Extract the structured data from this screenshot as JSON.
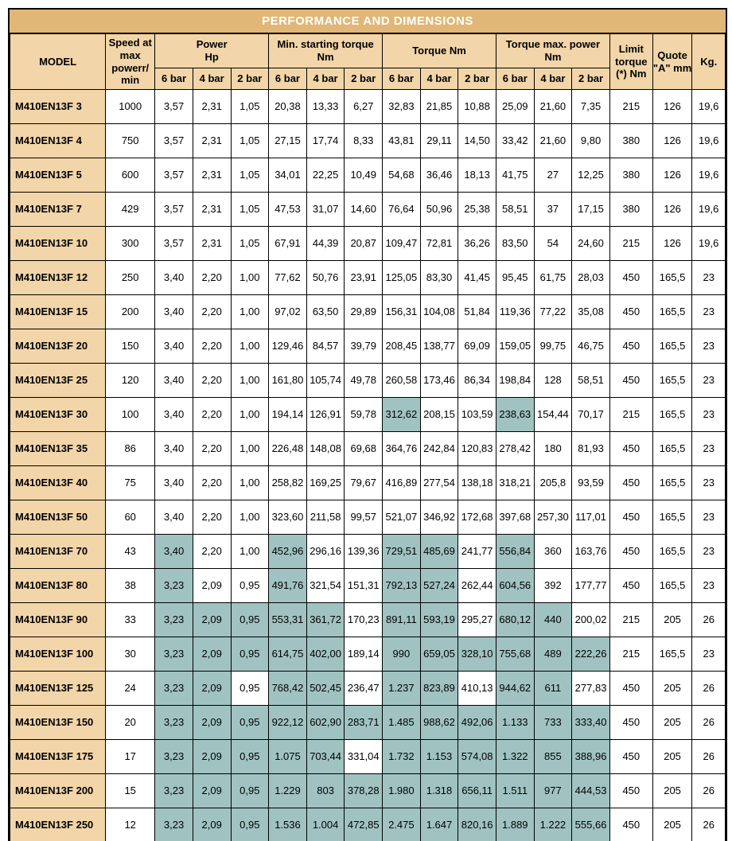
{
  "title": "PERFORMANCE AND DIMENSIONS",
  "colors": {
    "header_bg": "#f2d5a8",
    "title_bg": "#e0b776",
    "highlight_bg": "#a0c3c1",
    "border": "#000000",
    "title_text": "#ffffff"
  },
  "columns_top": [
    {
      "label": "MODEL",
      "rowspan": 2,
      "class": "col-model"
    },
    {
      "label": "Speed at max powerr/ min",
      "rowspan": 2,
      "class": "col-speed"
    },
    {
      "label": "Power\nHp",
      "colspan": 3
    },
    {
      "label": "Min. starting torque Nm",
      "colspan": 3
    },
    {
      "label": "Torque Nm",
      "colspan": 3
    },
    {
      "label": "Torque max. power Nm",
      "colspan": 3
    },
    {
      "label": "Limit torque (*) Nm",
      "rowspan": 2,
      "class": "col-limit"
    },
    {
      "label": "Quote \"A\" mm",
      "rowspan": 2,
      "class": "col-quote"
    },
    {
      "label": "Kg.",
      "rowspan": 2,
      "class": "col-kg"
    }
  ],
  "columns_sub": [
    "6 bar",
    "4 bar",
    "2 bar",
    "6 bar",
    "4 bar",
    "2 bar",
    "6 bar",
    "4 bar",
    "2 bar",
    "6 bar",
    "4 bar",
    "2 bar"
  ],
  "rows": [
    {
      "model": "M410EN13F 3",
      "speed": "1000",
      "p": [
        "3,57",
        "2,31",
        "1,05"
      ],
      "mst": [
        "20,38",
        "13,33",
        "6,27"
      ],
      "tq": [
        "32,83",
        "21,85",
        "10,88"
      ],
      "tmp": [
        "25,09",
        "21,60",
        "7,35"
      ],
      "limit": "215",
      "quote": "126",
      "kg": "19,6",
      "hl": {}
    },
    {
      "model": "M410EN13F 4",
      "speed": "750",
      "p": [
        "3,57",
        "2,31",
        "1,05"
      ],
      "mst": [
        "27,15",
        "17,74",
        "8,33"
      ],
      "tq": [
        "43,81",
        "29,11",
        "14,50"
      ],
      "tmp": [
        "33,42",
        "21,60",
        "9,80"
      ],
      "limit": "380",
      "quote": "126",
      "kg": "19,6",
      "hl": {}
    },
    {
      "model": "M410EN13F 5",
      "speed": "600",
      "p": [
        "3,57",
        "2,31",
        "1,05"
      ],
      "mst": [
        "34,01",
        "22,25",
        "10,49"
      ],
      "tq": [
        "54,68",
        "36,46",
        "18,13"
      ],
      "tmp": [
        "41,75",
        "27",
        "12,25"
      ],
      "limit": "380",
      "quote": "126",
      "kg": "19,6",
      "hl": {}
    },
    {
      "model": "M410EN13F 7",
      "speed": "429",
      "p": [
        "3,57",
        "2,31",
        "1,05"
      ],
      "mst": [
        "47,53",
        "31,07",
        "14,60"
      ],
      "tq": [
        "76,64",
        "50,96",
        "25,38"
      ],
      "tmp": [
        "58,51",
        "37",
        "17,15"
      ],
      "limit": "380",
      "quote": "126",
      "kg": "19,6",
      "hl": {}
    },
    {
      "model": "M410EN13F 10",
      "speed": "300",
      "p": [
        "3,57",
        "2,31",
        "1,05"
      ],
      "mst": [
        "67,91",
        "44,39",
        "20,87"
      ],
      "tq": [
        "109,47",
        "72,81",
        "36,26"
      ],
      "tmp": [
        "83,50",
        "54",
        "24,60"
      ],
      "limit": "215",
      "quote": "126",
      "kg": "19,6",
      "hl": {}
    },
    {
      "model": "M410EN13F 12",
      "speed": "250",
      "p": [
        "3,40",
        "2,20",
        "1,00"
      ],
      "mst": [
        "77,62",
        "50,76",
        "23,91"
      ],
      "tq": [
        "125,05",
        "83,30",
        "41,45"
      ],
      "tmp": [
        "95,45",
        "61,75",
        "28,03"
      ],
      "limit": "450",
      "quote": "165,5",
      "kg": "23",
      "hl": {}
    },
    {
      "model": "M410EN13F 15",
      "speed": "200",
      "p": [
        "3,40",
        "2,20",
        "1,00"
      ],
      "mst": [
        "97,02",
        "63,50",
        "29,89"
      ],
      "tq": [
        "156,31",
        "104,08",
        "51,84"
      ],
      "tmp": [
        "119,36",
        "77,22",
        "35,08"
      ],
      "limit": "450",
      "quote": "165,5",
      "kg": "23",
      "hl": {}
    },
    {
      "model": "M410EN13F 20",
      "speed": "150",
      "p": [
        "3,40",
        "2,20",
        "1,00"
      ],
      "mst": [
        "129,46",
        "84,57",
        "39,79"
      ],
      "tq": [
        "208,45",
        "138,77",
        "69,09"
      ],
      "tmp": [
        "159,05",
        "99,75",
        "46,75"
      ],
      "limit": "450",
      "quote": "165,5",
      "kg": "23",
      "hl": {}
    },
    {
      "model": "M410EN13F 25",
      "speed": "120",
      "p": [
        "3,40",
        "2,20",
        "1,00"
      ],
      "mst": [
        "161,80",
        "105,74",
        "49,78"
      ],
      "tq": [
        "260,58",
        "173,46",
        "86,34"
      ],
      "tmp": [
        "198,84",
        "128",
        "58,51"
      ],
      "limit": "450",
      "quote": "165,5",
      "kg": "23",
      "hl": {}
    },
    {
      "model": "M410EN13F 30",
      "speed": "100",
      "p": [
        "3,40",
        "2,20",
        "1,00"
      ],
      "mst": [
        "194,14",
        "126,91",
        "59,78"
      ],
      "tq": [
        "312,62",
        "208,15",
        "103,59"
      ],
      "tmp": [
        "238,63",
        "154,44",
        "70,17"
      ],
      "limit": "215",
      "quote": "165,5",
      "kg": "23",
      "hl": {
        "tq0": 1,
        "tmp0": 1
      }
    },
    {
      "model": "M410EN13F 35",
      "speed": "86",
      "p": [
        "3,40",
        "2,20",
        "1,00"
      ],
      "mst": [
        "226,48",
        "148,08",
        "69,68"
      ],
      "tq": [
        "364,76",
        "242,84",
        "120,83"
      ],
      "tmp": [
        "278,42",
        "180",
        "81,93"
      ],
      "limit": "450",
      "quote": "165,5",
      "kg": "23",
      "hl": {}
    },
    {
      "model": "M410EN13F 40",
      "speed": "75",
      "p": [
        "3,40",
        "2,20",
        "1,00"
      ],
      "mst": [
        "258,82",
        "169,25",
        "79,67"
      ],
      "tq": [
        "416,89",
        "277,54",
        "138,18"
      ],
      "tmp": [
        "318,21",
        "205,8",
        "93,59"
      ],
      "limit": "450",
      "quote": "165,5",
      "kg": "23",
      "hl": {}
    },
    {
      "model": "M410EN13F 50",
      "speed": "60",
      "p": [
        "3,40",
        "2,20",
        "1,00"
      ],
      "mst": [
        "323,60",
        "211,58",
        "99,57"
      ],
      "tq": [
        "521,07",
        "346,92",
        "172,68"
      ],
      "tmp": [
        "397,68",
        "257,30",
        "117,01"
      ],
      "limit": "450",
      "quote": "165,5",
      "kg": "23",
      "hl": {}
    },
    {
      "model": "M410EN13F 70",
      "speed": "43",
      "p": [
        "3,40",
        "2,20",
        "1,00"
      ],
      "mst": [
        "452,96",
        "296,16",
        "139,36"
      ],
      "tq": [
        "729,51",
        "485,69",
        "241,77"
      ],
      "tmp": [
        "556,84",
        "360",
        "163,76"
      ],
      "limit": "450",
      "quote": "165,5",
      "kg": "23",
      "hl": {
        "p0": 1,
        "mst0": 1,
        "tq0": 1,
        "tq1": 1,
        "tmp0": 1
      }
    },
    {
      "model": "M410EN13F 80",
      "speed": "38",
      "p": [
        "3,23",
        "2,09",
        "0,95"
      ],
      "mst": [
        "491,76",
        "321,54",
        "151,31"
      ],
      "tq": [
        "792,13",
        "527,24",
        "262,44"
      ],
      "tmp": [
        "604,56",
        "392",
        "177,77"
      ],
      "limit": "450",
      "quote": "165,5",
      "kg": "23",
      "hl": {
        "p0": 1,
        "mst0": 1,
        "tq0": 1,
        "tq1": 1,
        "tmp0": 1
      }
    },
    {
      "model": "M410EN13F 90",
      "speed": "33",
      "p": [
        "3,23",
        "2,09",
        "0,95"
      ],
      "mst": [
        "553,31",
        "361,72",
        "170,23"
      ],
      "tq": [
        "891,11",
        "593,19",
        "295,27"
      ],
      "tmp": [
        "680,12",
        "440",
        "200,02"
      ],
      "limit": "215",
      "quote": "205",
      "kg": "26",
      "hl": {
        "p0": 1,
        "p1": 1,
        "p2": 1,
        "mst0": 1,
        "mst1": 1,
        "tq0": 1,
        "tq1": 1,
        "tmp0": 1,
        "tmp1": 1
      }
    },
    {
      "model": "M410EN13F 100",
      "speed": "30",
      "p": [
        "3,23",
        "2,09",
        "0,95"
      ],
      "mst": [
        "614,75",
        "402,00",
        "189,14"
      ],
      "tq": [
        "990",
        "659,05",
        "328,10"
      ],
      "tmp": [
        "755,68",
        "489",
        "222,26"
      ],
      "limit": "215",
      "quote": "165,5",
      "kg": "23",
      "hl": {
        "p0": 1,
        "p1": 1,
        "p2": 1,
        "mst0": 1,
        "mst1": 1,
        "tq0": 1,
        "tq1": 1,
        "tq2": 1,
        "tmp0": 1,
        "tmp1": 1,
        "tmp2": 1
      }
    },
    {
      "model": "M410EN13F 125",
      "speed": "24",
      "p": [
        "3,23",
        "2,09",
        "0,95"
      ],
      "mst": [
        "768,42",
        "502,45",
        "236,47"
      ],
      "tq": [
        "1.237",
        "823,89",
        "410,13"
      ],
      "tmp": [
        "944,62",
        "611",
        "277,83"
      ],
      "limit": "450",
      "quote": "205",
      "kg": "26",
      "hl": {
        "p0": 1,
        "p1": 1,
        "mst0": 1,
        "mst1": 1,
        "tq0": 1,
        "tq1": 1,
        "tmp0": 1,
        "tmp1": 1
      }
    },
    {
      "model": "M410EN13F 150",
      "speed": "20",
      "p": [
        "3,23",
        "2,09",
        "0,95"
      ],
      "mst": [
        "922,12",
        "602,90",
        "283,71"
      ],
      "tq": [
        "1.485",
        "988,62",
        "492,06"
      ],
      "tmp": [
        "1.133",
        "733",
        "333,40"
      ],
      "limit": "450",
      "quote": "205",
      "kg": "26",
      "hl": {
        "p0": 1,
        "p1": 1,
        "p2": 1,
        "mst0": 1,
        "mst1": 1,
        "mst2": 1,
        "tq0": 1,
        "tq1": 1,
        "tq2": 1,
        "tmp0": 1,
        "tmp1": 1,
        "tmp2": 1
      }
    },
    {
      "model": "M410EN13F 175",
      "speed": "17",
      "p": [
        "3,23",
        "2,09",
        "0,95"
      ],
      "mst": [
        "1.075",
        "703,44",
        "331,04"
      ],
      "tq": [
        "1.732",
        "1.153",
        "574,08"
      ],
      "tmp": [
        "1.322",
        "855",
        "388,96"
      ],
      "limit": "450",
      "quote": "205",
      "kg": "26",
      "hl": {
        "p0": 1,
        "p1": 1,
        "p2": 1,
        "mst0": 1,
        "mst1": 1,
        "tq0": 1,
        "tq1": 1,
        "tq2": 1,
        "tmp0": 1,
        "tmp1": 1,
        "tmp2": 1
      }
    },
    {
      "model": "M410EN13F 200",
      "speed": "15",
      "p": [
        "3,23",
        "2,09",
        "0,95"
      ],
      "mst": [
        "1.229",
        "803",
        "378,28"
      ],
      "tq": [
        "1.980",
        "1.318",
        "656,11"
      ],
      "tmp": [
        "1.511",
        "977",
        "444,53"
      ],
      "limit": "450",
      "quote": "205",
      "kg": "26",
      "hl": {
        "p0": 1,
        "p1": 1,
        "p2": 1,
        "mst0": 1,
        "mst1": 1,
        "mst2": 1,
        "tq0": 1,
        "tq1": 1,
        "tq2": 1,
        "tmp0": 1,
        "tmp1": 1,
        "tmp2": 1
      }
    },
    {
      "model": "M410EN13F 250",
      "speed": "12",
      "p": [
        "3,23",
        "2,09",
        "0,95"
      ],
      "mst": [
        "1.536",
        "1.004",
        "472,85"
      ],
      "tq": [
        "2.475",
        "1.647",
        "820,16"
      ],
      "tmp": [
        "1.889",
        "1.222",
        "555,66"
      ],
      "limit": "450",
      "quote": "205",
      "kg": "26",
      "hl": {
        "p0": 1,
        "p1": 1,
        "p2": 1,
        "mst0": 1,
        "mst1": 1,
        "mst2": 1,
        "tq0": 1,
        "tq1": 1,
        "tq2": 1,
        "tmp0": 1,
        "tmp1": 1,
        "tmp2": 1
      }
    }
  ]
}
